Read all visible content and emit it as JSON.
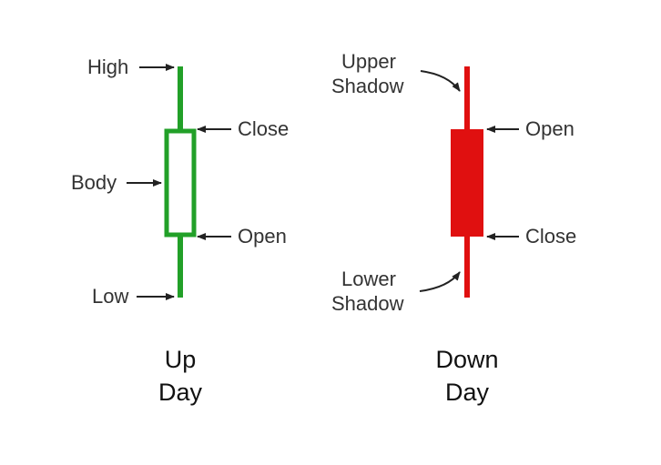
{
  "colors": {
    "up": "#22a028",
    "down": "#e01010",
    "arrow": "#222222",
    "text": "#333333"
  },
  "up_candle": {
    "labels": {
      "high": "High",
      "close": "Close",
      "body": "Body",
      "open": "Open",
      "low": "Low"
    },
    "caption": [
      "Up",
      "Day"
    ]
  },
  "down_candle": {
    "labels": {
      "upper_shadow": [
        "Upper",
        "Shadow"
      ],
      "open": "Open",
      "close": "Close",
      "lower_shadow": [
        "Lower",
        "Shadow"
      ]
    },
    "caption": [
      "Down",
      "Day"
    ]
  }
}
